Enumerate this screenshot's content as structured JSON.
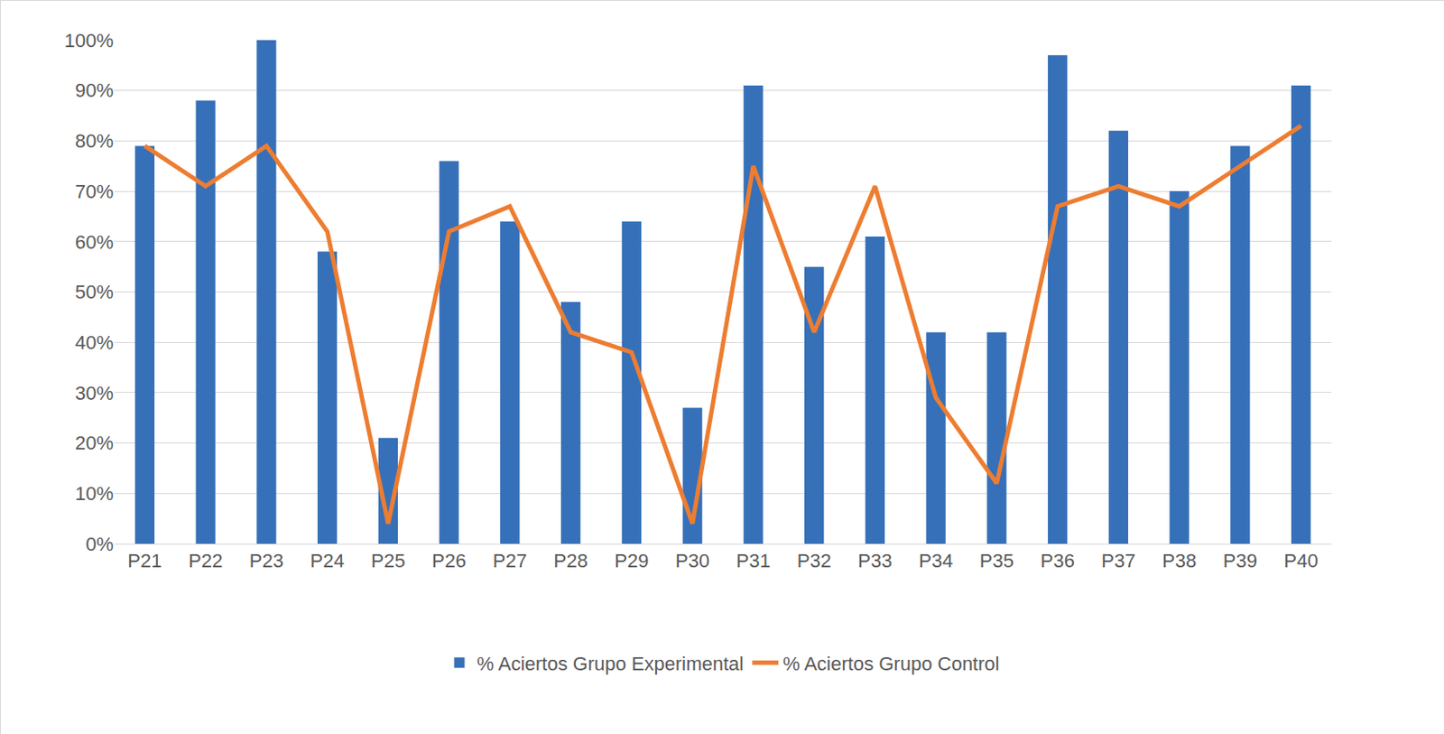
{
  "chart_data": {
    "type": "bar",
    "categories": [
      "P21",
      "P22",
      "P23",
      "P24",
      "P25",
      "P26",
      "P27",
      "P28",
      "P29",
      "P30",
      "P31",
      "P32",
      "P33",
      "P34",
      "P35",
      "P36",
      "P37",
      "P38",
      "P39",
      "P40"
    ],
    "series": [
      {
        "name": "% Aciertos Grupo Experimental",
        "type": "bar",
        "color": "#3670b9",
        "values": [
          79,
          88,
          100,
          58,
          21,
          76,
          64,
          48,
          64,
          27,
          91,
          55,
          61,
          42,
          42,
          97,
          82,
          70,
          79,
          91
        ]
      },
      {
        "name": "% Aciertos Grupo Control",
        "type": "line",
        "color": "#ed7d31",
        "values": [
          79,
          71,
          79,
          62,
          4,
          62,
          67,
          42,
          38,
          4,
          75,
          42,
          71,
          29,
          12,
          67,
          71,
          67,
          75,
          83
        ]
      }
    ],
    "ylim": [
      0,
      100
    ],
    "yticks": [
      {
        "value": 0,
        "label": "0%"
      },
      {
        "value": 10,
        "label": "10%"
      },
      {
        "value": 20,
        "label": "20%"
      },
      {
        "value": 30,
        "label": "30%"
      },
      {
        "value": 40,
        "label": "40%"
      },
      {
        "value": 50,
        "label": "50%"
      },
      {
        "value": 60,
        "label": "60%"
      },
      {
        "value": 70,
        "label": "70%"
      },
      {
        "value": 80,
        "label": "80%"
      },
      {
        "value": 90,
        "label": "90%"
      },
      {
        "value": 100,
        "label": "100%"
      }
    ],
    "grid": true,
    "legend": "bottom"
  }
}
